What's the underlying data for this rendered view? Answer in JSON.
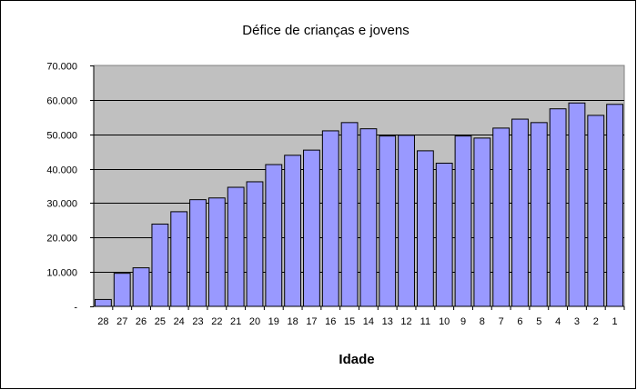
{
  "chart_data": {
    "type": "bar",
    "title": "Défice de crianças e jovens",
    "xlabel": "Idade",
    "ylabel": "",
    "ylim": [
      0,
      70000
    ],
    "yticks": [
      0,
      10000,
      20000,
      30000,
      40000,
      50000,
      60000,
      70000
    ],
    "ytick_labels": [
      "-",
      "10.000",
      "20.000",
      "30.000",
      "40.000",
      "50.000",
      "60.000",
      "70.000"
    ],
    "grid": true,
    "legend": "none",
    "categories": [
      "28",
      "27",
      "26",
      "25",
      "24",
      "23",
      "22",
      "21",
      "20",
      "19",
      "18",
      "17",
      "16",
      "15",
      "14",
      "13",
      "12",
      "11",
      "10",
      "9",
      "8",
      "7",
      "6",
      "5",
      "4",
      "3",
      "2",
      "1"
    ],
    "values": [
      2000,
      9600,
      11200,
      23900,
      27500,
      31000,
      31500,
      34600,
      36200,
      41200,
      43900,
      45400,
      51000,
      53400,
      51600,
      49500,
      49700,
      45200,
      41600,
      49500,
      48900,
      51800,
      54400,
      53400,
      57400,
      59100,
      55500,
      58700
    ],
    "colors": {
      "bar": "#9999ff",
      "plot_bg": "#c0c0c0",
      "grid": "#000000"
    }
  }
}
